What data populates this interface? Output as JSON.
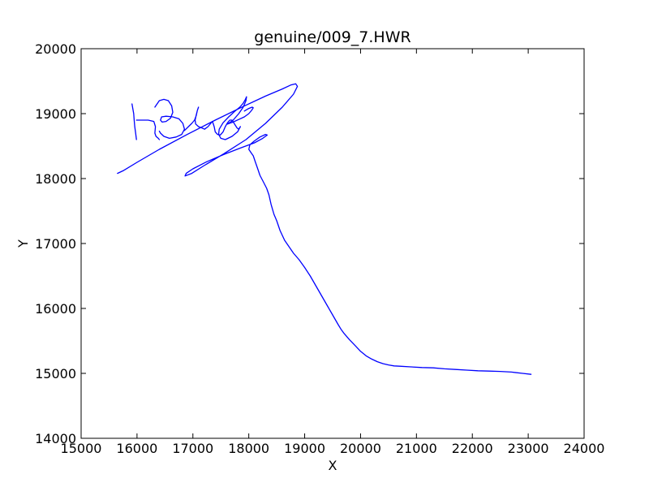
{
  "chart_data": {
    "type": "line",
    "title": "genuine/009_7.HWR",
    "xlabel": "X",
    "ylabel": "Y",
    "xlim": [
      15000,
      24000
    ],
    "ylim": [
      14000,
      20000
    ],
    "xticks": [
      15000,
      16000,
      17000,
      18000,
      19000,
      20000,
      21000,
      22000,
      23000,
      24000
    ],
    "yticks": [
      14000,
      15000,
      16000,
      17000,
      18000,
      19000,
      20000
    ],
    "grid": false,
    "series_color": "#0000ff",
    "strokes": [
      {
        "x": [
          15910,
          15920,
          15940,
          15950,
          15960,
          15975,
          15990
        ],
        "y": [
          19150,
          19100,
          19000,
          18900,
          18800,
          18700,
          18600
        ]
      },
      {
        "x": [
          15990,
          16050,
          16200,
          16300,
          16330,
          16320,
          16340,
          16380,
          16400
        ],
        "y": [
          18900,
          18900,
          18900,
          18880,
          18800,
          18700,
          18650,
          18620,
          18600
        ]
      },
      {
        "x": [
          16320,
          16400,
          16480,
          16560,
          16620,
          16640,
          16600,
          16520,
          16450,
          16420,
          16440,
          16520,
          16640,
          16750,
          16820,
          16850,
          16800,
          16700,
          16580,
          16480,
          16420,
          16400
        ],
        "y": [
          19100,
          19200,
          19220,
          19200,
          19120,
          19020,
          18930,
          18880,
          18870,
          18900,
          18950,
          18960,
          18950,
          18920,
          18850,
          18760,
          18680,
          18640,
          18620,
          18650,
          18700,
          18730
        ]
      },
      {
        "x": [
          16850,
          16920,
          16980,
          17030,
          17060,
          17080,
          17100,
          17080,
          17060,
          17040,
          17050,
          17100,
          17160,
          17210,
          17270,
          17320,
          17350
        ],
        "y": [
          18740,
          18800,
          18850,
          18900,
          18970,
          19050,
          19100,
          19050,
          18980,
          18900,
          18840,
          18800,
          18780,
          18760,
          18800,
          18850,
          18880
        ]
      },
      {
        "x": [
          17350,
          17380,
          17400,
          17440,
          17490,
          17540,
          17580,
          17620,
          17660,
          17700,
          17730,
          17760,
          17790,
          17820,
          17850
        ],
        "y": [
          18880,
          18800,
          18720,
          18680,
          18670,
          18720,
          18800,
          18860,
          18900,
          18900,
          18860,
          18820,
          18780,
          18760,
          18800
        ]
      },
      {
        "x": [
          17850,
          17800,
          17700,
          17580,
          17500,
          17460,
          17470,
          17540,
          17640,
          17740,
          17840,
          17900,
          17940,
          17960,
          17950,
          17900,
          17820,
          17720,
          17620
        ],
        "y": [
          18800,
          18720,
          18650,
          18600,
          18620,
          18680,
          18760,
          18860,
          18950,
          19030,
          19100,
          19160,
          19220,
          19260,
          19200,
          19100,
          19000,
          18900,
          18840
        ]
      },
      {
        "x": [
          17620,
          17720,
          17820,
          17920,
          18000,
          18050,
          18080,
          18060,
          18000,
          17920
        ],
        "y": [
          18840,
          18870,
          18910,
          18950,
          19000,
          19050,
          19090,
          19100,
          19080,
          19040
        ]
      },
      {
        "x": [
          15650,
          15750,
          16000,
          16400,
          16900,
          17400,
          17900,
          18300,
          18600,
          18750,
          18840,
          18870,
          18800,
          18600,
          18300,
          17950,
          17550,
          17200,
          16980,
          16860,
          16880,
          17000,
          17250,
          17550,
          17850,
          18100,
          18250,
          18330,
          18300,
          18200,
          18100,
          18020,
          18000,
          18040,
          18080,
          18120,
          18160,
          18200,
          18260,
          18320,
          18360,
          18400,
          18450,
          18500,
          18560,
          18640,
          18720,
          18800,
          18900,
          19000,
          19100,
          19200,
          19300,
          19400,
          19500,
          19600,
          19650,
          19700,
          19800,
          19900,
          20000,
          20100,
          20200,
          20300,
          20400,
          20500,
          20600,
          20700,
          20900,
          21100,
          21300,
          21500,
          21700,
          21900,
          22100,
          22300,
          22500,
          22700,
          22900,
          23050
        ],
        "y": [
          18080,
          18120,
          18250,
          18450,
          18680,
          18900,
          19110,
          19270,
          19380,
          19440,
          19460,
          19420,
          19300,
          19100,
          18850,
          18600,
          18380,
          18200,
          18080,
          18040,
          18080,
          18150,
          18260,
          18370,
          18470,
          18550,
          18620,
          18670,
          18680,
          18640,
          18580,
          18520,
          18450,
          18400,
          18350,
          18250,
          18150,
          18050,
          17950,
          17850,
          17750,
          17600,
          17450,
          17350,
          17200,
          17050,
          16950,
          16850,
          16750,
          16630,
          16500,
          16350,
          16200,
          16050,
          15900,
          15750,
          15680,
          15620,
          15520,
          15430,
          15340,
          15270,
          15220,
          15180,
          15150,
          15130,
          15115,
          15110,
          15100,
          15090,
          15085,
          15070,
          15060,
          15050,
          15040,
          15035,
          15030,
          15020,
          15000,
          14985
        ]
      }
    ]
  }
}
